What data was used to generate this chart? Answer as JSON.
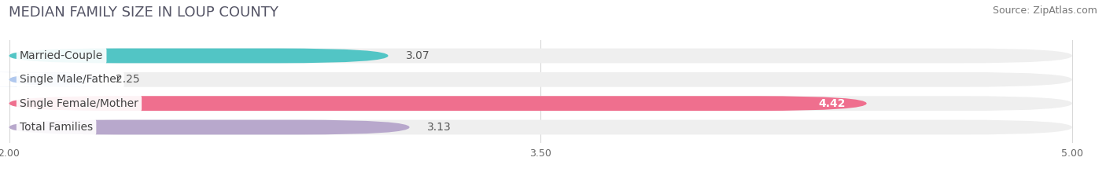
{
  "title": "MEDIAN FAMILY SIZE IN LOUP COUNTY",
  "source": "Source: ZipAtlas.com",
  "categories": [
    "Married-Couple",
    "Single Male/Father",
    "Single Female/Mother",
    "Total Families"
  ],
  "values": [
    3.07,
    2.25,
    4.42,
    3.13
  ],
  "bar_colors": [
    "#52c5c5",
    "#b0c8ee",
    "#ef6f8e",
    "#b8a8cc"
  ],
  "bar_bg_color": "#efefef",
  "value_text_color": [
    "#555555",
    "#555555",
    "#ffffff",
    "#555555"
  ],
  "xmin": 2.0,
  "xmax": 5.0,
  "xticks": [
    2.0,
    3.5,
    5.0
  ],
  "title_fontsize": 13,
  "source_fontsize": 9,
  "label_fontsize": 10,
  "value_fontsize": 10,
  "bar_height": 0.62,
  "background_color": "#ffffff",
  "grid_color": "#d8d8d8",
  "bar_gap": 0.38
}
